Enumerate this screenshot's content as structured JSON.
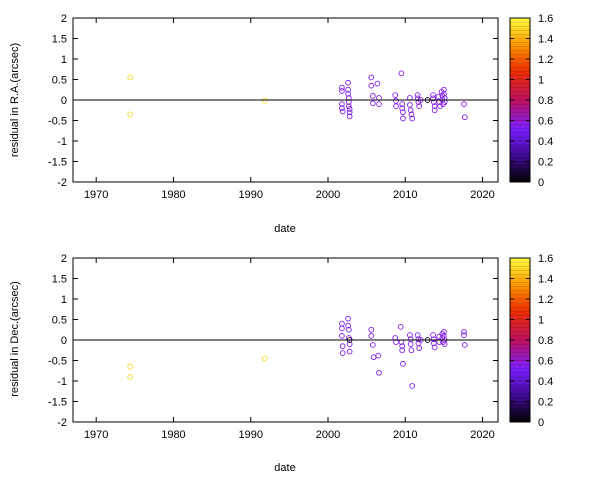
{
  "chart_data": [
    {
      "type": "scatter",
      "xlabel": "date",
      "ylabel": "residual in R.A.(arcsec)",
      "xlim": [
        1967,
        2022
      ],
      "ylim": [
        -2,
        2
      ],
      "xticks": [
        "1970",
        "1980",
        "1990",
        "2000",
        "2010",
        "2020"
      ],
      "yticks": [
        "-2",
        "-1.5",
        "-1",
        "-0.5",
        "0",
        "0.5",
        "1",
        "1.5",
        "2"
      ],
      "zero_line": true,
      "colorbar": {
        "range": [
          0,
          1.6
        ],
        "ticks": [
          "0",
          "0.2",
          "0.4",
          "0.6",
          "0.8",
          "1",
          "1.2",
          "1.4",
          "1.6"
        ]
      },
      "points": [
        {
          "x": 1974.4,
          "y": 0.55,
          "c": 1.5
        },
        {
          "x": 1974.4,
          "y": -0.35,
          "c": 1.5
        },
        {
          "x": 1991.8,
          "y": -0.02,
          "c": 1.5
        },
        {
          "x": 2001.8,
          "y": 0.3,
          "c": 0.55
        },
        {
          "x": 2001.8,
          "y": 0.22,
          "c": 0.55
        },
        {
          "x": 2001.8,
          "y": -0.1,
          "c": 0.55
        },
        {
          "x": 2001.8,
          "y": -0.2,
          "c": 0.55
        },
        {
          "x": 2001.9,
          "y": -0.28,
          "c": 0.55
        },
        {
          "x": 2002.6,
          "y": 0.42,
          "c": 0.55
        },
        {
          "x": 2002.6,
          "y": 0.25,
          "c": 0.55
        },
        {
          "x": 2002.6,
          "y": 0.15,
          "c": 0.55
        },
        {
          "x": 2002.7,
          "y": 0.05,
          "c": 0.55
        },
        {
          "x": 2002.7,
          "y": -0.05,
          "c": 0.55
        },
        {
          "x": 2002.7,
          "y": -0.15,
          "c": 0.55
        },
        {
          "x": 2002.8,
          "y": -0.22,
          "c": 0.55
        },
        {
          "x": 2002.8,
          "y": -0.3,
          "c": 0.55
        },
        {
          "x": 2002.8,
          "y": -0.4,
          "c": 0.55
        },
        {
          "x": 2005.6,
          "y": 0.55,
          "c": 0.55
        },
        {
          "x": 2005.6,
          "y": 0.35,
          "c": 0.55
        },
        {
          "x": 2005.8,
          "y": 0.1,
          "c": 0.55
        },
        {
          "x": 2005.8,
          "y": -0.08,
          "c": 0.55
        },
        {
          "x": 2006.4,
          "y": 0.4,
          "c": 0.55
        },
        {
          "x": 2006.6,
          "y": 0.05,
          "c": 0.55
        },
        {
          "x": 2006.6,
          "y": -0.1,
          "c": 0.55
        },
        {
          "x": 2008.7,
          "y": 0.12,
          "c": 0.55
        },
        {
          "x": 2008.8,
          "y": -0.02,
          "c": 0.55
        },
        {
          "x": 2008.8,
          "y": -0.15,
          "c": 0.55
        },
        {
          "x": 2009.5,
          "y": 0.65,
          "c": 0.55
        },
        {
          "x": 2009.6,
          "y": -0.1,
          "c": 0.55
        },
        {
          "x": 2009.6,
          "y": -0.2,
          "c": 0.55
        },
        {
          "x": 2009.7,
          "y": -0.3,
          "c": 0.55
        },
        {
          "x": 2009.7,
          "y": -0.45,
          "c": 0.55
        },
        {
          "x": 2010.6,
          "y": 0.05,
          "c": 0.55
        },
        {
          "x": 2010.6,
          "y": -0.12,
          "c": 0.55
        },
        {
          "x": 2010.7,
          "y": -0.25,
          "c": 0.55
        },
        {
          "x": 2010.8,
          "y": -0.35,
          "c": 0.55
        },
        {
          "x": 2010.9,
          "y": -0.45,
          "c": 0.55
        },
        {
          "x": 2011.6,
          "y": 0.12,
          "c": 0.55
        },
        {
          "x": 2011.6,
          "y": 0.04,
          "c": 0.55
        },
        {
          "x": 2011.7,
          "y": -0.05,
          "c": 0.55
        },
        {
          "x": 2011.8,
          "y": -0.15,
          "c": 0.55
        },
        {
          "x": 2012.0,
          "y": 0.0,
          "c": 0.55
        },
        {
          "x": 2012.9,
          "y": 0.0,
          "c": 0.05
        },
        {
          "x": 2013.6,
          "y": 0.12,
          "c": 0.55
        },
        {
          "x": 2013.6,
          "y": 0.04,
          "c": 0.55
        },
        {
          "x": 2013.7,
          "y": -0.05,
          "c": 0.55
        },
        {
          "x": 2013.8,
          "y": -0.15,
          "c": 0.55
        },
        {
          "x": 2013.8,
          "y": -0.25,
          "c": 0.55
        },
        {
          "x": 2014.3,
          "y": 0.08,
          "c": 0.55
        },
        {
          "x": 2014.4,
          "y": -0.05,
          "c": 0.55
        },
        {
          "x": 2014.5,
          "y": -0.15,
          "c": 0.55
        },
        {
          "x": 2014.7,
          "y": 0.2,
          "c": 0.55
        },
        {
          "x": 2014.8,
          "y": 0.1,
          "c": 0.55
        },
        {
          "x": 2014.8,
          "y": 0.0,
          "c": 0.55
        },
        {
          "x": 2014.9,
          "y": -0.1,
          "c": 0.55
        },
        {
          "x": 2015.0,
          "y": 0.25,
          "c": 0.55
        },
        {
          "x": 2015.0,
          "y": 0.15,
          "c": 0.55
        },
        {
          "x": 2015.1,
          "y": 0.05,
          "c": 0.55
        },
        {
          "x": 2015.1,
          "y": -0.05,
          "c": 0.55
        },
        {
          "x": 2017.6,
          "y": -0.1,
          "c": 0.55
        },
        {
          "x": 2017.7,
          "y": -0.42,
          "c": 0.55
        }
      ]
    },
    {
      "type": "scatter",
      "xlabel": "date",
      "ylabel": "residual in Dec.(arcsec)",
      "xlim": [
        1967,
        2022
      ],
      "ylim": [
        -2,
        2
      ],
      "xticks": [
        "1970",
        "1980",
        "1990",
        "2000",
        "2010",
        "2020"
      ],
      "yticks": [
        "-2",
        "-1.5",
        "-1",
        "-0.5",
        "0",
        "0.5",
        "1",
        "1.5",
        "2"
      ],
      "zero_line": true,
      "colorbar": {
        "range": [
          0,
          1.6
        ],
        "ticks": [
          "0",
          "0.2",
          "0.4",
          "0.6",
          "0.8",
          "1",
          "1.2",
          "1.4",
          "1.6"
        ]
      },
      "points": [
        {
          "x": 1974.4,
          "y": -0.65,
          "c": 1.5
        },
        {
          "x": 1974.4,
          "y": -0.9,
          "c": 1.5
        },
        {
          "x": 1991.8,
          "y": -0.45,
          "c": 1.5
        },
        {
          "x": 2001.8,
          "y": 0.4,
          "c": 0.55
        },
        {
          "x": 2001.8,
          "y": 0.28,
          "c": 0.55
        },
        {
          "x": 2001.8,
          "y": 0.1,
          "c": 0.55
        },
        {
          "x": 2001.9,
          "y": -0.15,
          "c": 0.55
        },
        {
          "x": 2001.9,
          "y": -0.32,
          "c": 0.55
        },
        {
          "x": 2002.6,
          "y": 0.52,
          "c": 0.55
        },
        {
          "x": 2002.6,
          "y": 0.35,
          "c": 0.55
        },
        {
          "x": 2002.7,
          "y": 0.25,
          "c": 0.55
        },
        {
          "x": 2002.7,
          "y": 0.05,
          "c": 0.55
        },
        {
          "x": 2002.8,
          "y": -0.1,
          "c": 0.55
        },
        {
          "x": 2002.8,
          "y": -0.28,
          "c": 0.55
        },
        {
          "x": 2002.8,
          "y": 0.0,
          "c": 0.05
        },
        {
          "x": 2005.6,
          "y": 0.25,
          "c": 0.55
        },
        {
          "x": 2005.6,
          "y": 0.1,
          "c": 0.55
        },
        {
          "x": 2005.8,
          "y": -0.12,
          "c": 0.55
        },
        {
          "x": 2005.9,
          "y": -0.42,
          "c": 0.55
        },
        {
          "x": 2006.5,
          "y": -0.38,
          "c": 0.55
        },
        {
          "x": 2006.6,
          "y": -0.8,
          "c": 0.55
        },
        {
          "x": 2008.7,
          "y": 0.05,
          "c": 0.55
        },
        {
          "x": 2008.8,
          "y": -0.05,
          "c": 0.55
        },
        {
          "x": 2009.4,
          "y": 0.32,
          "c": 0.55
        },
        {
          "x": 2009.5,
          "y": -0.05,
          "c": 0.55
        },
        {
          "x": 2009.6,
          "y": -0.15,
          "c": 0.55
        },
        {
          "x": 2009.6,
          "y": -0.25,
          "c": 0.55
        },
        {
          "x": 2009.7,
          "y": -0.58,
          "c": 0.55
        },
        {
          "x": 2010.6,
          "y": 0.12,
          "c": 0.55
        },
        {
          "x": 2010.7,
          "y": 0.02,
          "c": 0.55
        },
        {
          "x": 2010.7,
          "y": -0.1,
          "c": 0.55
        },
        {
          "x": 2010.8,
          "y": -0.25,
          "c": 0.55
        },
        {
          "x": 2010.9,
          "y": -1.12,
          "c": 0.55
        },
        {
          "x": 2011.6,
          "y": 0.12,
          "c": 0.55
        },
        {
          "x": 2011.7,
          "y": 0.02,
          "c": 0.55
        },
        {
          "x": 2011.7,
          "y": -0.08,
          "c": 0.55
        },
        {
          "x": 2011.8,
          "y": -0.2,
          "c": 0.55
        },
        {
          "x": 2012.0,
          "y": 0.0,
          "c": 0.55
        },
        {
          "x": 2012.9,
          "y": 0.0,
          "c": 0.05
        },
        {
          "x": 2013.6,
          "y": 0.12,
          "c": 0.55
        },
        {
          "x": 2013.7,
          "y": 0.02,
          "c": 0.55
        },
        {
          "x": 2013.7,
          "y": -0.08,
          "c": 0.55
        },
        {
          "x": 2013.8,
          "y": -0.18,
          "c": 0.55
        },
        {
          "x": 2014.4,
          "y": 0.08,
          "c": 0.55
        },
        {
          "x": 2014.4,
          "y": -0.05,
          "c": 0.55
        },
        {
          "x": 2014.8,
          "y": 0.15,
          "c": 0.55
        },
        {
          "x": 2014.8,
          "y": 0.05,
          "c": 0.55
        },
        {
          "x": 2014.9,
          "y": -0.05,
          "c": 0.55
        },
        {
          "x": 2015.0,
          "y": 0.2,
          "c": 0.55
        },
        {
          "x": 2015.0,
          "y": 0.1,
          "c": 0.55
        },
        {
          "x": 2015.1,
          "y": 0.0,
          "c": 0.55
        },
        {
          "x": 2015.1,
          "y": -0.1,
          "c": 0.55
        },
        {
          "x": 2017.6,
          "y": 0.2,
          "c": 0.55
        },
        {
          "x": 2017.6,
          "y": 0.12,
          "c": 0.55
        },
        {
          "x": 2017.7,
          "y": -0.12,
          "c": 0.55
        }
      ]
    }
  ]
}
